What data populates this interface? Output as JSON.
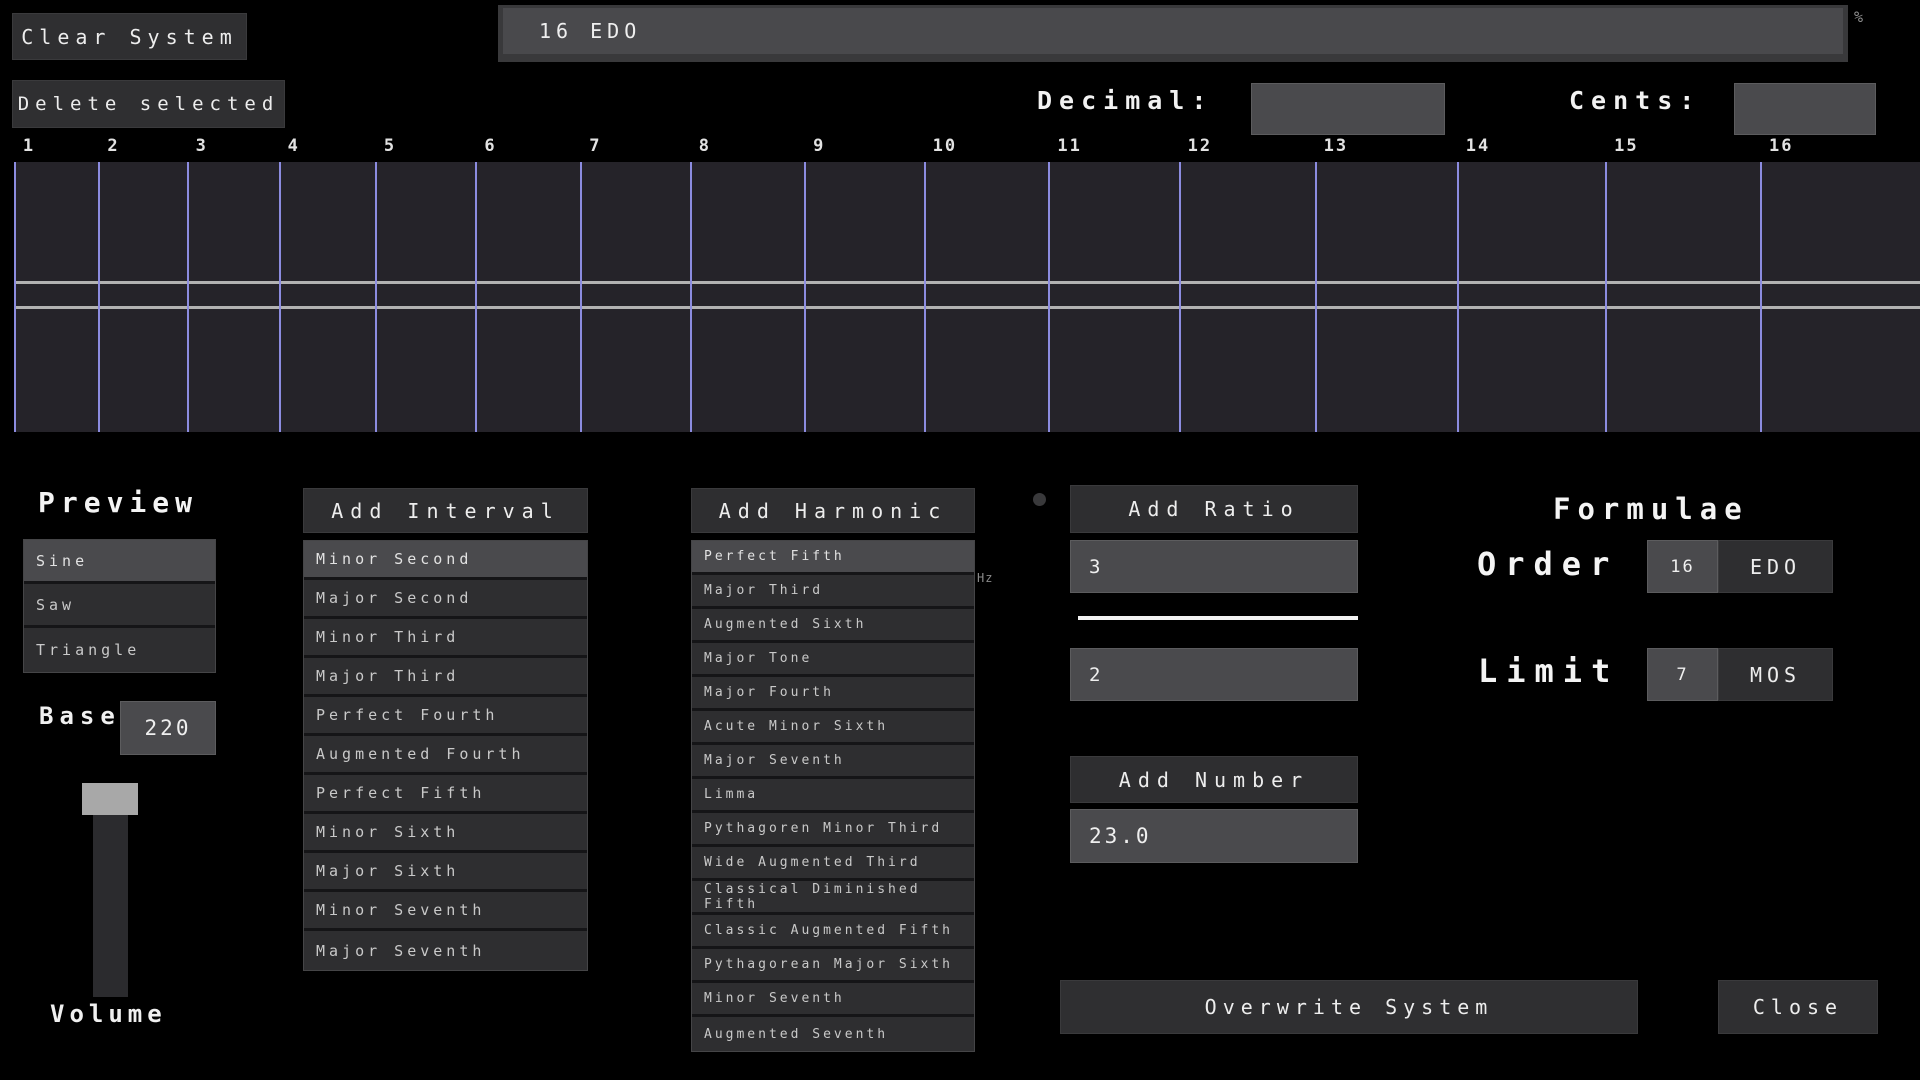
{
  "toolbar": {
    "clear_label": "Clear System",
    "delete_label": "Delete selected",
    "system_name": "16 EDO",
    "percent": "%",
    "decimal_label": "Decimal:",
    "decimal_value": "",
    "cents_label": "Cents:",
    "cents_value": ""
  },
  "ruler": {
    "ticks": [
      1,
      2,
      3,
      4,
      5,
      6,
      7,
      8,
      9,
      10,
      11,
      12,
      13,
      14,
      15,
      16
    ]
  },
  "preview": {
    "title": "Preview",
    "waveforms": [
      "Sine",
      "Saw",
      "Triangle"
    ],
    "selected_index": 0,
    "base_label": "Base",
    "base_value": "220",
    "volume_label": "Volume"
  },
  "add_interval": {
    "title": "Add Interval",
    "selected_index": 0,
    "items": [
      "Minor Second",
      "Major Second",
      "Minor Third",
      "Major Third",
      "Perfect Fourth",
      "Augmented Fourth",
      "Perfect Fifth",
      "Minor Sixth",
      "Major Sixth",
      "Minor Seventh",
      "Major Seventh"
    ]
  },
  "add_harmonic": {
    "title": "Add Harmonic",
    "selected_index": 0,
    "hz_label": "Hz",
    "items": [
      "Perfect Fifth",
      "Major Third",
      "Augmented Sixth",
      "Major Tone",
      "Major Fourth",
      "Acute Minor Sixth",
      "Major Seventh",
      "Limma",
      "Pythagoren Minor Third",
      "Wide Augmented Third",
      "Classical Diminished Fifth",
      "Classic Augmented Fifth",
      "Pythagorean Major Sixth",
      "Minor Seventh",
      "Augmented Seventh"
    ]
  },
  "add_ratio": {
    "title": "Add Ratio",
    "numerator": "3",
    "denominator": "2"
  },
  "add_number": {
    "title": "Add Number",
    "value": "23.0"
  },
  "formulae": {
    "title": "Formulae",
    "order_label": "Order",
    "order_value": "16",
    "order_unit": "EDO",
    "limit_label": "Limit",
    "limit_value": "7",
    "limit_unit": "MOS"
  },
  "footer": {
    "overwrite_label": "Overwrite System",
    "close_label": "Close"
  },
  "colors": {
    "background": "#000000",
    "panel": "#2f2f31",
    "selected_row": "#4a4a4d",
    "input_bg": "#4a4a4d",
    "grid_bg": "#252329",
    "grid_vline": "#8c8ce0",
    "grid_hline": "#b2b2b2",
    "volume_handle": "#a8a8a8",
    "text": "#ededed"
  }
}
